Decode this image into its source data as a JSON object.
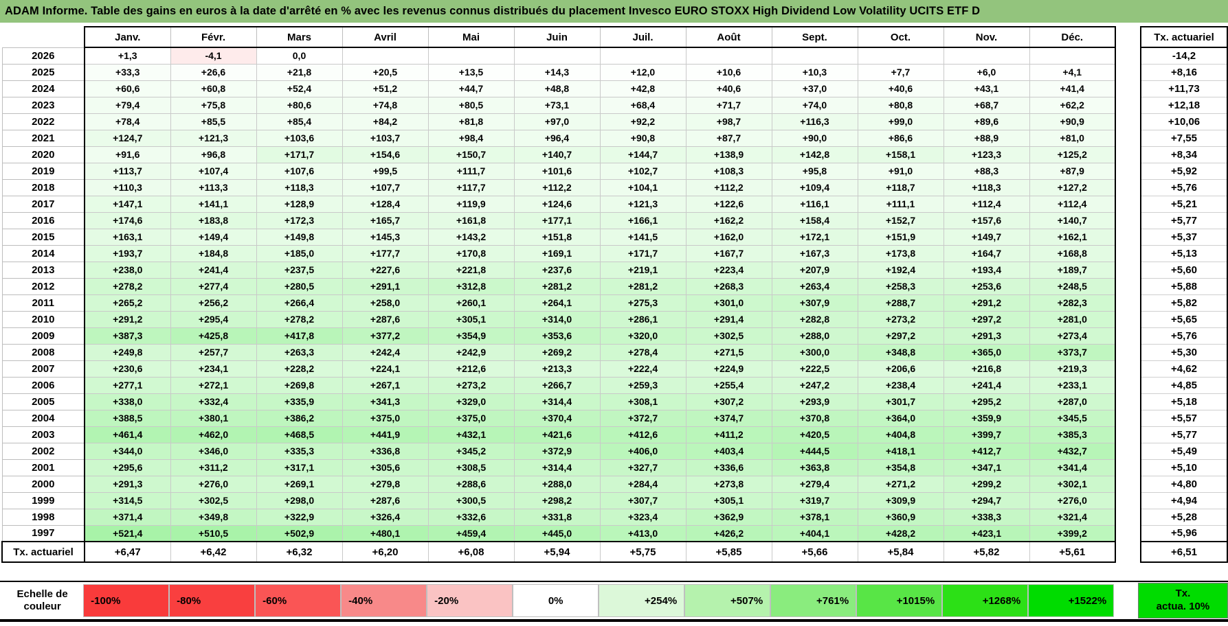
{
  "colors": {
    "title_bg": "#93c47d",
    "grid_line": "#c9c9c9",
    "thick_border": "#000000"
  },
  "chart_data": {
    "type": "heatmap",
    "title": "ADAM Informe. Table des gains en euros à la date d'arrêté en % avec les revenus connus distribués du placement Invesco EURO STOXX High Dividend Low Volatility UCITS ETF D",
    "columns": [
      "Janv.",
      "Févr.",
      "Mars",
      "Avril",
      "Mai",
      "Juin",
      "Juil.",
      "Août",
      "Sept.",
      "Oct.",
      "Nov.",
      "Déc."
    ],
    "tx_column_header": "Tx. actuariel",
    "rows": [
      {
        "year": "2026",
        "values": [
          "+1,3",
          "-4,1",
          "0,0",
          "",
          "",
          "",
          "",
          "",
          "",
          "",
          "",
          ""
        ],
        "tx": "-14,2"
      },
      {
        "year": "2025",
        "values": [
          "+33,3",
          "+26,6",
          "+21,8",
          "+20,5",
          "+13,5",
          "+14,3",
          "+12,0",
          "+10,6",
          "+10,3",
          "+7,7",
          "+6,0",
          "+4,1"
        ],
        "tx": "+8,16"
      },
      {
        "year": "2024",
        "values": [
          "+60,6",
          "+60,8",
          "+52,4",
          "+51,2",
          "+44,7",
          "+48,8",
          "+42,8",
          "+40,6",
          "+37,0",
          "+40,6",
          "+43,1",
          "+41,4"
        ],
        "tx": "+11,73"
      },
      {
        "year": "2023",
        "values": [
          "+79,4",
          "+75,8",
          "+80,6",
          "+74,8",
          "+80,5",
          "+73,1",
          "+68,4",
          "+71,7",
          "+74,0",
          "+80,8",
          "+68,7",
          "+62,2"
        ],
        "tx": "+12,18"
      },
      {
        "year": "2022",
        "values": [
          "+78,4",
          "+85,5",
          "+85,4",
          "+84,2",
          "+81,8",
          "+97,0",
          "+92,2",
          "+98,7",
          "+116,3",
          "+99,0",
          "+89,6",
          "+90,9"
        ],
        "tx": "+10,06"
      },
      {
        "year": "2021",
        "values": [
          "+124,7",
          "+121,3",
          "+103,6",
          "+103,7",
          "+98,4",
          "+96,4",
          "+90,8",
          "+87,7",
          "+90,0",
          "+86,6",
          "+88,9",
          "+81,0"
        ],
        "tx": "+7,55"
      },
      {
        "year": "2020",
        "values": [
          "+91,6",
          "+96,8",
          "+171,7",
          "+154,6",
          "+150,7",
          "+140,7",
          "+144,7",
          "+138,9",
          "+142,8",
          "+158,1",
          "+123,3",
          "+125,2"
        ],
        "tx": "+8,34"
      },
      {
        "year": "2019",
        "values": [
          "+113,7",
          "+107,4",
          "+107,6",
          "+99,5",
          "+111,7",
          "+101,6",
          "+102,7",
          "+108,3",
          "+95,8",
          "+91,0",
          "+88,3",
          "+87,9"
        ],
        "tx": "+5,92"
      },
      {
        "year": "2018",
        "values": [
          "+110,3",
          "+113,3",
          "+118,3",
          "+107,7",
          "+117,7",
          "+112,2",
          "+104,1",
          "+112,2",
          "+109,4",
          "+118,7",
          "+118,3",
          "+127,2"
        ],
        "tx": "+5,76"
      },
      {
        "year": "2017",
        "values": [
          "+147,1",
          "+141,1",
          "+128,9",
          "+128,4",
          "+119,9",
          "+124,6",
          "+121,3",
          "+122,6",
          "+116,1",
          "+111,1",
          "+112,4",
          "+112,4"
        ],
        "tx": "+5,21"
      },
      {
        "year": "2016",
        "values": [
          "+174,6",
          "+183,8",
          "+172,3",
          "+165,7",
          "+161,8",
          "+177,1",
          "+166,1",
          "+162,2",
          "+158,4",
          "+152,7",
          "+157,6",
          "+140,7"
        ],
        "tx": "+5,77"
      },
      {
        "year": "2015",
        "values": [
          "+163,1",
          "+149,4",
          "+149,8",
          "+145,3",
          "+143,2",
          "+151,8",
          "+141,5",
          "+162,0",
          "+172,1",
          "+151,9",
          "+149,7",
          "+162,1"
        ],
        "tx": "+5,37"
      },
      {
        "year": "2014",
        "values": [
          "+193,7",
          "+184,8",
          "+185,0",
          "+177,7",
          "+170,8",
          "+169,1",
          "+171,7",
          "+167,7",
          "+167,3",
          "+173,8",
          "+164,7",
          "+168,8"
        ],
        "tx": "+5,13"
      },
      {
        "year": "2013",
        "values": [
          "+238,0",
          "+241,4",
          "+237,5",
          "+227,6",
          "+221,8",
          "+237,6",
          "+219,1",
          "+223,4",
          "+207,9",
          "+192,4",
          "+193,4",
          "+189,7"
        ],
        "tx": "+5,60"
      },
      {
        "year": "2012",
        "values": [
          "+278,2",
          "+277,4",
          "+280,5",
          "+291,1",
          "+312,8",
          "+281,2",
          "+281,2",
          "+268,3",
          "+263,4",
          "+258,3",
          "+253,6",
          "+248,5"
        ],
        "tx": "+5,88"
      },
      {
        "year": "2011",
        "values": [
          "+265,2",
          "+256,2",
          "+266,4",
          "+258,0",
          "+260,1",
          "+264,1",
          "+275,3",
          "+301,0",
          "+307,9",
          "+288,7",
          "+291,2",
          "+282,3"
        ],
        "tx": "+5,82"
      },
      {
        "year": "2010",
        "values": [
          "+291,2",
          "+295,4",
          "+278,2",
          "+287,6",
          "+305,1",
          "+314,0",
          "+286,1",
          "+291,4",
          "+282,8",
          "+273,2",
          "+297,2",
          "+281,0"
        ],
        "tx": "+5,65"
      },
      {
        "year": "2009",
        "values": [
          "+387,3",
          "+425,8",
          "+417,8",
          "+377,2",
          "+354,9",
          "+353,6",
          "+320,0",
          "+302,5",
          "+288,0",
          "+297,2",
          "+291,3",
          "+273,4"
        ],
        "tx": "+5,76"
      },
      {
        "year": "2008",
        "values": [
          "+249,8",
          "+257,7",
          "+263,3",
          "+242,4",
          "+242,9",
          "+269,2",
          "+278,4",
          "+271,5",
          "+300,0",
          "+348,8",
          "+365,0",
          "+373,7"
        ],
        "tx": "+5,30"
      },
      {
        "year": "2007",
        "values": [
          "+230,6",
          "+234,1",
          "+228,2",
          "+224,1",
          "+212,6",
          "+213,3",
          "+222,4",
          "+224,9",
          "+222,5",
          "+206,6",
          "+216,8",
          "+219,3"
        ],
        "tx": "+4,62"
      },
      {
        "year": "2006",
        "values": [
          "+277,1",
          "+272,1",
          "+269,8",
          "+267,1",
          "+273,2",
          "+266,7",
          "+259,3",
          "+255,4",
          "+247,2",
          "+238,4",
          "+241,4",
          "+233,1"
        ],
        "tx": "+4,85"
      },
      {
        "year": "2005",
        "values": [
          "+338,0",
          "+332,4",
          "+335,9",
          "+341,3",
          "+329,0",
          "+314,4",
          "+308,1",
          "+307,2",
          "+293,9",
          "+301,7",
          "+295,2",
          "+287,0"
        ],
        "tx": "+5,18"
      },
      {
        "year": "2004",
        "values": [
          "+388,5",
          "+380,1",
          "+386,2",
          "+375,0",
          "+375,0",
          "+370,4",
          "+372,7",
          "+374,7",
          "+370,8",
          "+364,0",
          "+359,9",
          "+345,5"
        ],
        "tx": "+5,57"
      },
      {
        "year": "2003",
        "values": [
          "+461,4",
          "+462,0",
          "+468,5",
          "+441,9",
          "+432,1",
          "+421,6",
          "+412,6",
          "+411,2",
          "+420,5",
          "+404,8",
          "+399,7",
          "+385,3"
        ],
        "tx": "+5,77"
      },
      {
        "year": "2002",
        "values": [
          "+344,0",
          "+346,0",
          "+335,3",
          "+336,8",
          "+345,2",
          "+372,9",
          "+406,0",
          "+403,4",
          "+444,5",
          "+418,1",
          "+412,7",
          "+432,7"
        ],
        "tx": "+5,49"
      },
      {
        "year": "2001",
        "values": [
          "+295,6",
          "+311,2",
          "+317,1",
          "+305,6",
          "+308,5",
          "+314,4",
          "+327,7",
          "+336,6",
          "+363,8",
          "+354,8",
          "+347,1",
          "+341,4"
        ],
        "tx": "+5,10"
      },
      {
        "year": "2000",
        "values": [
          "+291,3",
          "+276,0",
          "+269,1",
          "+279,8",
          "+288,6",
          "+288,0",
          "+284,4",
          "+273,8",
          "+279,4",
          "+271,2",
          "+299,2",
          "+302,1"
        ],
        "tx": "+4,80"
      },
      {
        "year": "1999",
        "values": [
          "+314,5",
          "+302,5",
          "+298,0",
          "+287,6",
          "+300,5",
          "+298,2",
          "+307,7",
          "+305,1",
          "+319,7",
          "+309,9",
          "+294,7",
          "+276,0"
        ],
        "tx": "+4,94"
      },
      {
        "year": "1998",
        "values": [
          "+371,4",
          "+349,8",
          "+322,9",
          "+326,4",
          "+332,6",
          "+331,8",
          "+323,4",
          "+362,9",
          "+378,1",
          "+360,9",
          "+338,3",
          "+321,4"
        ],
        "tx": "+5,28"
      },
      {
        "year": "1997",
        "values": [
          "+521,4",
          "+510,5",
          "+502,9",
          "+480,1",
          "+459,4",
          "+445,0",
          "+413,0",
          "+426,2",
          "+404,1",
          "+428,2",
          "+423,1",
          "+399,2"
        ],
        "tx": "+5,96"
      }
    ],
    "footer": {
      "label": "Tx. actuariel",
      "values": [
        "+6,47",
        "+6,42",
        "+6,32",
        "+6,20",
        "+6,08",
        "+5,94",
        "+5,75",
        "+5,85",
        "+5,66",
        "+5,84",
        "+5,82",
        "+5,61"
      ],
      "tx": "+6,51"
    },
    "dashed_cell": {
      "row_index": 0,
      "col_index": 1
    },
    "color_scale": {
      "label_line1": "Echelle de",
      "label_line2": "couleur",
      "stops": [
        {
          "label": "-100%",
          "color": "#f93b3b"
        },
        {
          "label": "-80%",
          "color": "#f93f3f"
        },
        {
          "label": "-60%",
          "color": "#fa5555"
        },
        {
          "label": "-40%",
          "color": "#f88989"
        },
        {
          "label": "-20%",
          "color": "#fac3c3"
        },
        {
          "label": "0%",
          "color": "#ffffff"
        },
        {
          "label": "+254%",
          "color": "#dcf8d9"
        },
        {
          "label": "+507%",
          "color": "#b5f2ad"
        },
        {
          "label": "+761%",
          "color": "#8aec7e"
        },
        {
          "label": "+1015%",
          "color": "#58e546"
        },
        {
          "label": "+1268%",
          "color": "#2ce016"
        },
        {
          "label": "+1522%",
          "color": "#00dc00"
        }
      ],
      "tx_box": {
        "label_line1": "Tx.",
        "label_line2": "actua. 10%",
        "color": "#00dc00"
      },
      "positive_max_pct": 1522,
      "negative_min_pct": -100
    }
  }
}
